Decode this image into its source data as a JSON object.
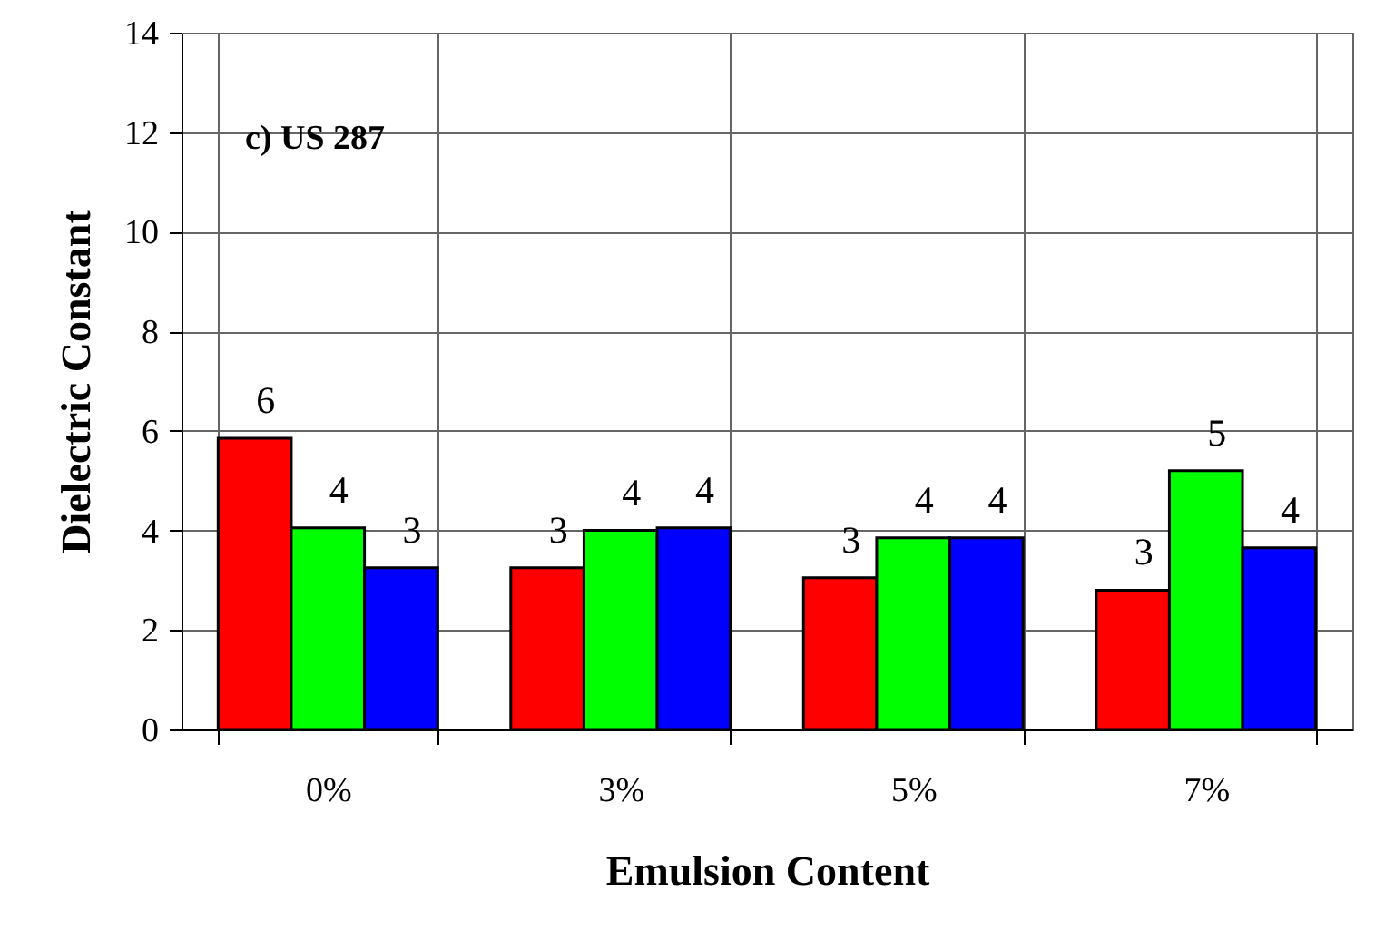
{
  "chart_data": {
    "type": "bar",
    "xlabel": "Emulsion Content",
    "ylabel": "Dielectric Constant",
    "categories": [
      "0%",
      "3%",
      "5%",
      "7%"
    ],
    "series": [
      {
        "color": "#ff0000",
        "values": [
          5.85,
          3.25,
          3.05,
          2.8
        ],
        "value_labels": [
          "6",
          "3",
          "3",
          "3"
        ]
      },
      {
        "color": "#00ff00",
        "values": [
          4.05,
          4.0,
          3.85,
          5.2
        ],
        "value_labels": [
          "4",
          "4",
          "4",
          "5"
        ]
      },
      {
        "color": "#0000ff",
        "values": [
          3.25,
          4.05,
          3.85,
          3.65
        ],
        "value_labels": [
          "3",
          "4",
          "4",
          "4"
        ]
      }
    ],
    "ylim": [
      0,
      14
    ],
    "yticks": [
      0,
      2,
      4,
      6,
      8,
      10,
      12,
      14
    ],
    "grid": true,
    "annotations": [
      "c) US 287"
    ]
  }
}
